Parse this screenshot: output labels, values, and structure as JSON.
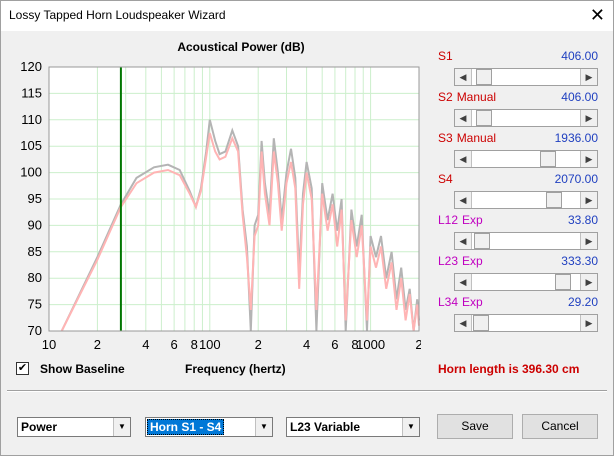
{
  "window": {
    "title": "Lossy Tapped Horn Loudspeaker Wizard",
    "close_glyph": "✕"
  },
  "chart_data": {
    "type": "line",
    "title": "Acoustical Power (dB)",
    "xlabel": "Frequency (hertz)",
    "ylabel": "",
    "x_scale": "log",
    "xlim": [
      10,
      2000
    ],
    "ylim": [
      70,
      120
    ],
    "y_ticks": [
      70,
      75,
      80,
      85,
      90,
      95,
      100,
      105,
      110,
      115,
      120
    ],
    "x_ticks": [
      {
        "value": 10,
        "label": "10"
      },
      {
        "value": 20,
        "label": "2"
      },
      {
        "value": 40,
        "label": "4"
      },
      {
        "value": 60,
        "label": "6"
      },
      {
        "value": 80,
        "label": "8"
      },
      {
        "value": 100,
        "label": "100"
      },
      {
        "value": 200,
        "label": "2"
      },
      {
        "value": 400,
        "label": "4"
      },
      {
        "value": 600,
        "label": "6"
      },
      {
        "value": 800,
        "label": "8"
      },
      {
        "value": 1000,
        "label": "1000"
      },
      {
        "value": 2000,
        "label": "2"
      }
    ],
    "grid": true,
    "marker_line_x": 28,
    "series": [
      {
        "color": "#b4b4b4",
        "x": [
          12,
          20,
          28,
          35,
          45,
          55,
          65,
          75,
          82,
          88,
          95,
          100,
          108,
          115,
          125,
          138,
          150,
          160,
          170,
          180,
          190,
          200,
          210,
          220,
          235,
          250,
          265,
          280,
          300,
          320,
          340,
          360,
          380,
          400,
          430,
          460,
          500,
          540,
          580,
          620,
          660,
          700,
          760,
          820,
          880,
          950,
          1000,
          1080,
          1160,
          1250,
          1350,
          1450,
          1550,
          1650,
          1750,
          1850,
          1950,
          2000
        ],
        "y": [
          70,
          84,
          94,
          99,
          101,
          101.5,
          100.5,
          96.5,
          93.5,
          97,
          104,
          110,
          106,
          103.5,
          104,
          108,
          105,
          93,
          86,
          70,
          90,
          92,
          106,
          98,
          92,
          106.5,
          100,
          91,
          100,
          104.5,
          99,
          81,
          96,
          102,
          97,
          70,
          98,
          91,
          96,
          89,
          95,
          70,
          93,
          86,
          92,
          70,
          88,
          84,
          88,
          80,
          85,
          76,
          82,
          74,
          78,
          70,
          76,
          72
        ]
      },
      {
        "color": "#ffb4b4",
        "x": [
          12,
          20,
          28,
          35,
          45,
          55,
          65,
          75,
          82,
          88,
          95,
          100,
          108,
          115,
          125,
          138,
          150,
          160,
          170,
          180,
          190,
          200,
          210,
          220,
          235,
          250,
          265,
          280,
          300,
          320,
          340,
          360,
          380,
          400,
          430,
          460,
          500,
          540,
          580,
          620,
          660,
          700,
          760,
          820,
          880,
          950,
          1000,
          1080,
          1160,
          1250,
          1350,
          1450,
          1550,
          1650,
          1750,
          1850,
          1950,
          2000
        ],
        "y": [
          70,
          83.5,
          93.5,
          98,
          100,
          100.5,
          99.5,
          96,
          93.5,
          96.5,
          103,
          107.5,
          104,
          102.5,
          103,
          106.5,
          104,
          92,
          84,
          74,
          88,
          90,
          104,
          96,
          90,
          104,
          98,
          89,
          98,
          102,
          97,
          78,
          94,
          100,
          95,
          74,
          96,
          89,
          94,
          86,
          93,
          72,
          91,
          84,
          90,
          72,
          86,
          82,
          86,
          78,
          83,
          74,
          80,
          72,
          77,
          70,
          75,
          71
        ]
      }
    ]
  },
  "show_baseline": {
    "label": "Show Baseline",
    "checked": true,
    "check_glyph": "✔"
  },
  "sliders": [
    {
      "name": "S1",
      "mode": "",
      "value": "406.00",
      "name_color": "#cc0000",
      "mode_color": "#cc0000",
      "position": 0.05
    },
    {
      "name": "S2",
      "mode": "Manual",
      "value": "406.00",
      "name_color": "#cc0000",
      "mode_color": "#cc0000",
      "position": 0.05
    },
    {
      "name": "S3",
      "mode": "Manual",
      "value": "1936.00",
      "name_color": "#cc0000",
      "mode_color": "#cc0000",
      "position": 0.73
    },
    {
      "name": "S4",
      "mode": "",
      "value": "2070.00",
      "name_color": "#cc0000",
      "mode_color": "#cc0000",
      "position": 0.8
    },
    {
      "name": "L12",
      "mode": "Exp",
      "value": "33.80",
      "name_color": "#c000c0",
      "mode_color": "#c000c0",
      "position": 0.03
    },
    {
      "name": "L23",
      "mode": "Exp",
      "value": "333.30",
      "name_color": "#c000c0",
      "mode_color": "#c000c0",
      "position": 0.89
    },
    {
      "name": "L34",
      "mode": "Exp",
      "value": "29.20",
      "name_color": "#c000c0",
      "mode_color": "#c000c0",
      "position": 0.02
    }
  ],
  "horn_length": "Horn length is 396.30 cm",
  "combos": {
    "plot": "Power",
    "horn": "Horn S1 - S4",
    "variable": "L23 Variable",
    "arrow_glyph": "▼"
  },
  "buttons": {
    "save": "Save",
    "cancel": "Cancel"
  },
  "scroll_glyphs": {
    "left": "◀",
    "right": "▶"
  }
}
